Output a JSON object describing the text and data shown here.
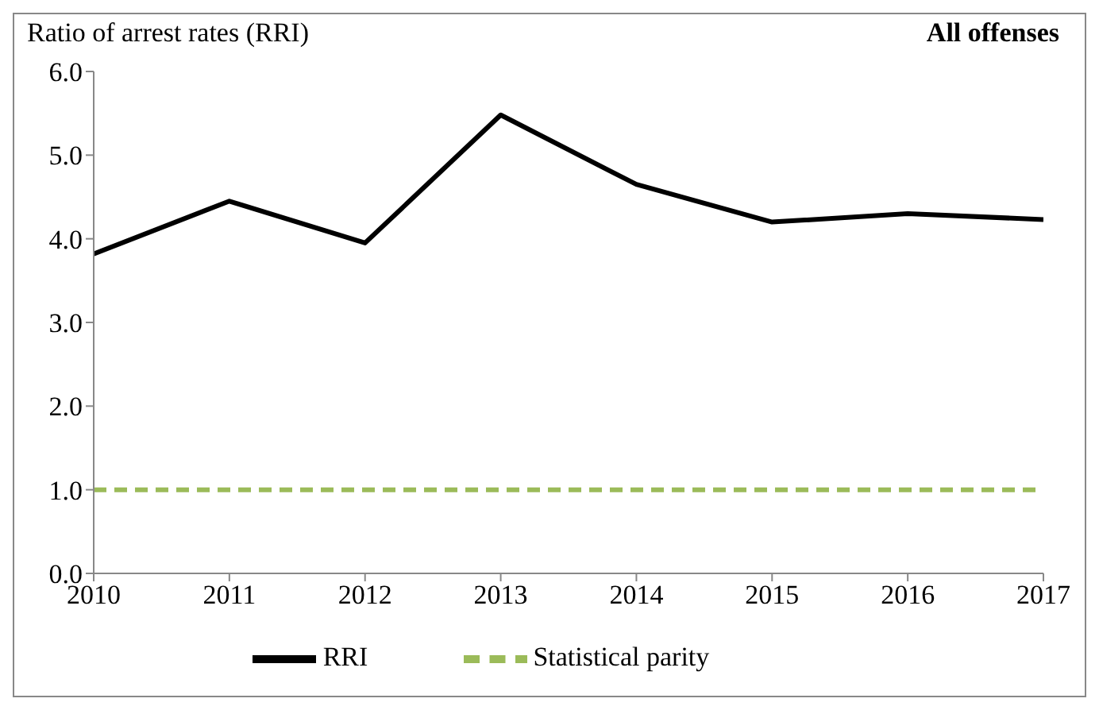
{
  "chart_data": {
    "type": "line",
    "title": "All offenses",
    "ylabel": "Ratio of arrest rates (RRI)",
    "x": [
      2010,
      2011,
      2012,
      2013,
      2014,
      2015,
      2016,
      2017
    ],
    "series": [
      {
        "name": "RRI",
        "color": "#000000",
        "values": [
          3.82,
          4.45,
          3.95,
          5.48,
          4.65,
          4.2,
          4.3,
          4.23
        ],
        "line_style": "solid"
      },
      {
        "name": "Statistical parity",
        "color": "#9bbb59",
        "values": [
          1,
          1,
          1,
          1,
          1,
          1,
          1,
          1
        ],
        "line_style": "dashed"
      }
    ],
    "xlim": [
      2010,
      2017
    ],
    "xticks": [
      2010,
      2011,
      2012,
      2013,
      2014,
      2015,
      2016,
      2017
    ],
    "ylim": [
      0,
      6
    ],
    "yticks": [
      {
        "value": 0,
        "label": "0.0"
      },
      {
        "value": 1,
        "label": "1.0"
      },
      {
        "value": 2,
        "label": "2.0"
      },
      {
        "value": 3,
        "label": "3.0"
      },
      {
        "value": 4,
        "label": "4.0"
      },
      {
        "value": 5,
        "label": "5.0"
      },
      {
        "value": 6,
        "label": "6.0"
      }
    ],
    "grid": false,
    "legend": "bottom",
    "marker": "none"
  }
}
